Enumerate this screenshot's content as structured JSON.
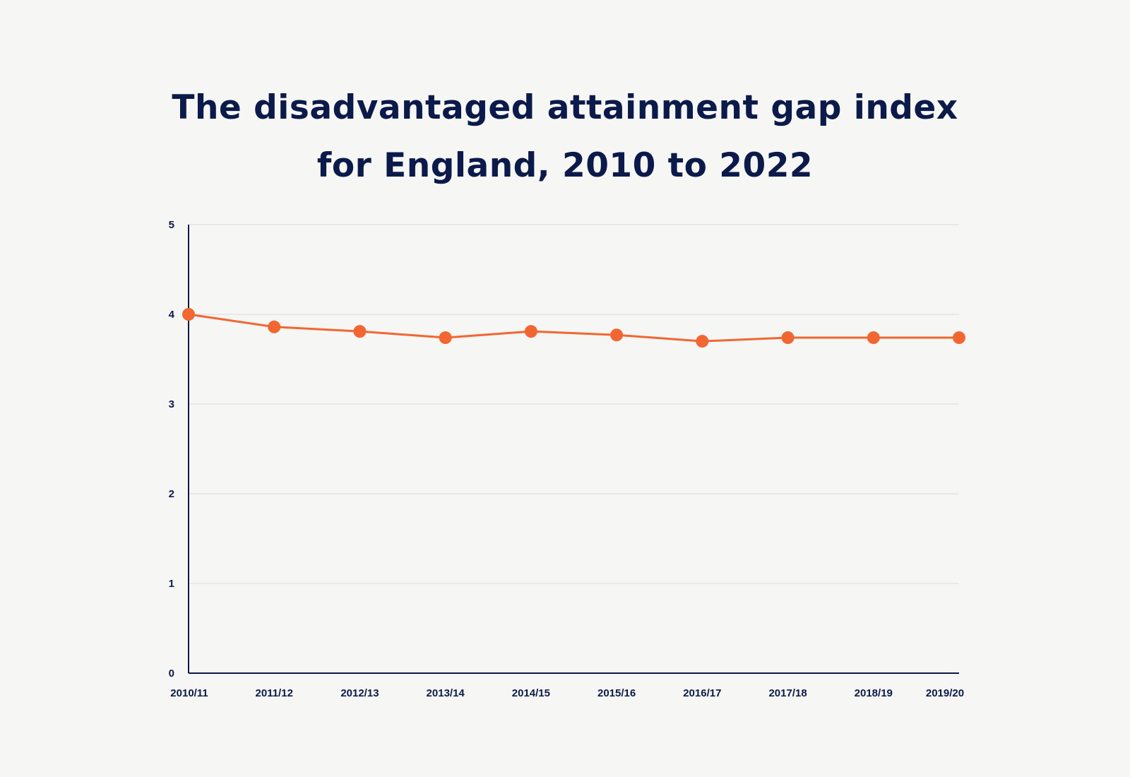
{
  "chart_data": {
    "type": "line",
    "title": "The disadvantaged attainment gap index for England, 2010 to 2022",
    "categories": [
      "2010/11",
      "2011/12",
      "2012/13",
      "2013/14",
      "2014/15",
      "2015/16",
      "2016/17",
      "2017/18",
      "2018/19",
      "2019/20"
    ],
    "series": [
      {
        "values": [
          4.0,
          3.86,
          3.81,
          3.74,
          3.81,
          3.77,
          3.7,
          3.74,
          3.74,
          3.74
        ]
      }
    ],
    "yticks": [
      "0",
      "1",
      "2",
      "3",
      "4",
      "5"
    ],
    "ylim": [
      0,
      5
    ],
    "grid": true,
    "colors": {
      "line": "#f26631",
      "axis": "#0b1a4a",
      "grid": "#e3e3e1",
      "text": "#0b1a4a"
    }
  }
}
